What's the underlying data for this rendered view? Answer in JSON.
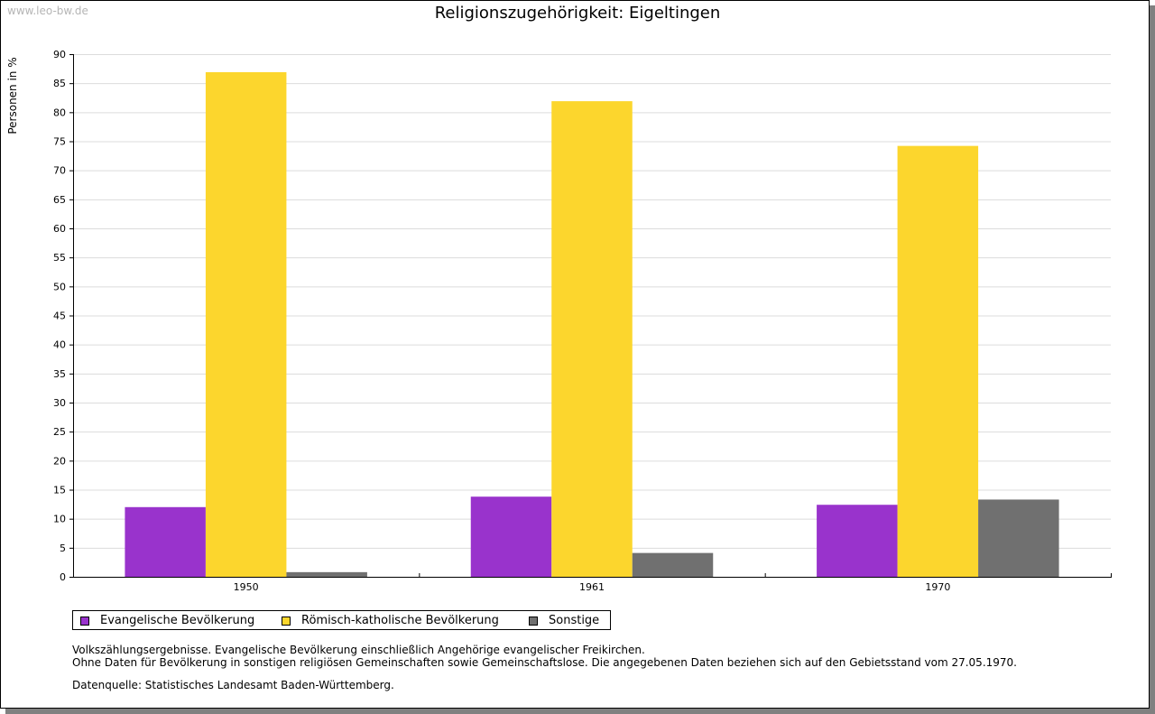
{
  "watermark": "www.leo-bw.de",
  "chart_data": {
    "type": "bar",
    "title": "Religionszugehörigkeit: Eigeltingen",
    "ylabel": "Personen in %",
    "xlabel": "",
    "categories": [
      "1950",
      "1961",
      "1970"
    ],
    "series": [
      {
        "name": "Evangelische Bevölkerung",
        "color": "#9933cc",
        "values": [
          12.0,
          13.8,
          12.4
        ]
      },
      {
        "name": "Römisch-katholische Bevölkerung",
        "color": "#fcd62d",
        "values": [
          86.9,
          81.9,
          74.2
        ]
      },
      {
        "name": "Sonstige",
        "color": "#707070",
        "values": [
          0.8,
          4.1,
          13.3
        ]
      }
    ],
    "ylim": [
      0,
      90
    ],
    "yticks": [
      "0",
      "5",
      "10",
      "15",
      "20",
      "25",
      "30",
      "35",
      "40",
      "45",
      "50",
      "55",
      "60",
      "65",
      "70",
      "75",
      "80",
      "85",
      "90"
    ],
    "grid": true,
    "legend_position": "bottom"
  },
  "notes": {
    "line1": "Volkszählungsergebnisse. Evangelische Bevölkerung einschließlich Angehörige evangelischer Freikirchen.",
    "line2": "Ohne Daten für Bevölkerung in sonstigen religiösen Gemeinschaften sowie Gemeinschaftslose. Die angegebenen Daten beziehen sich auf den Gebietsstand vom 27.05.1970."
  },
  "source": "Datenquelle: Statistisches Landesamt Baden-Württemberg."
}
